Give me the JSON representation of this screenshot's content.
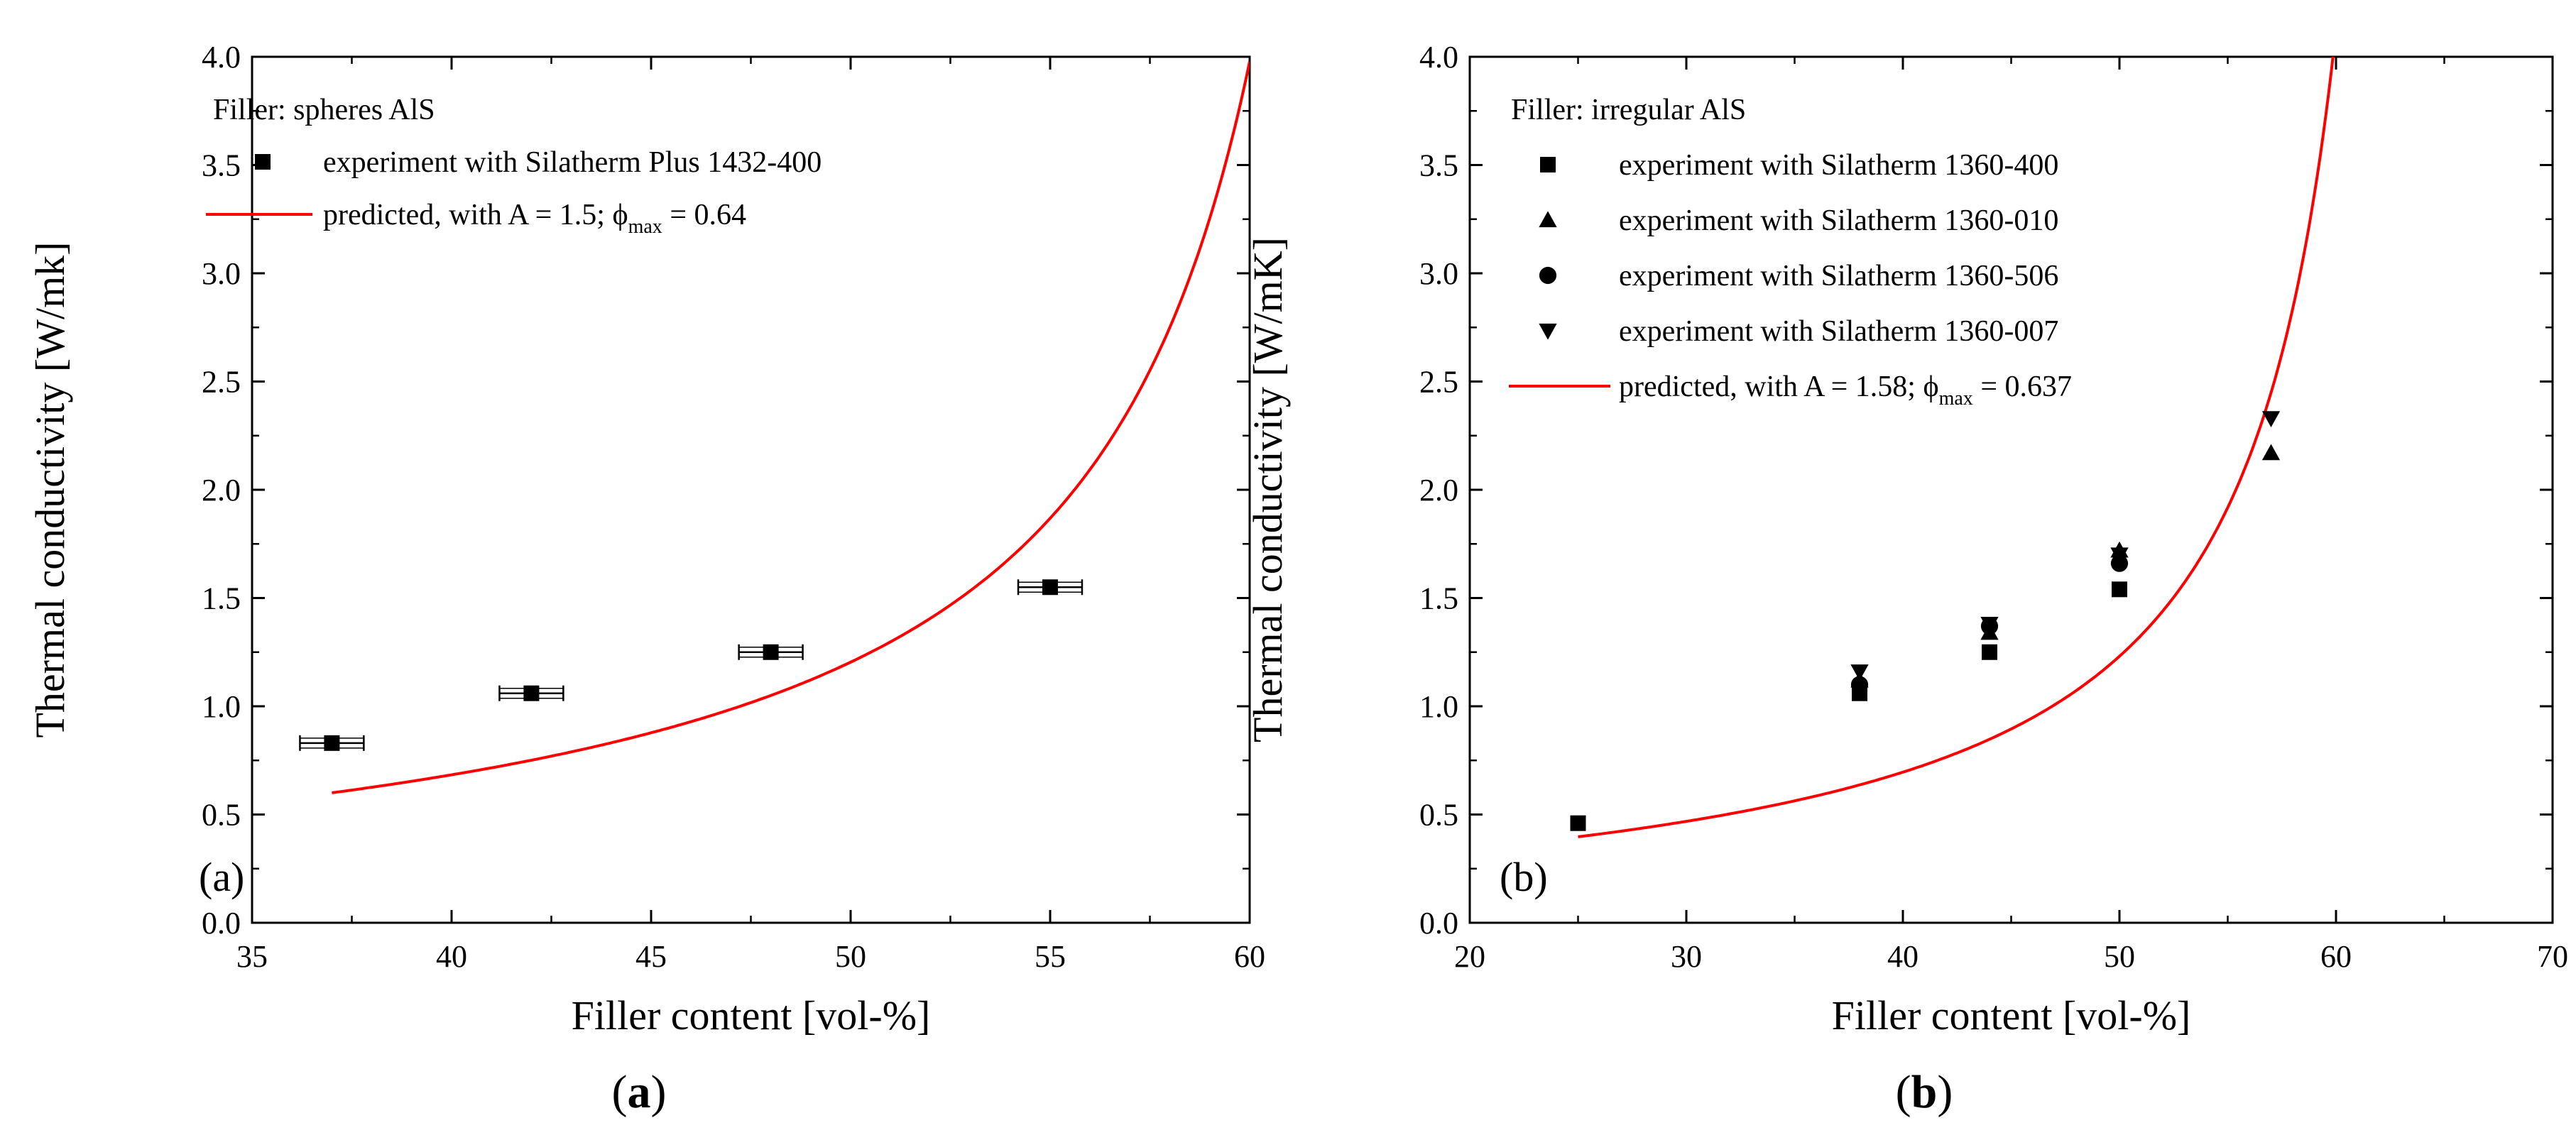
{
  "chart_data": [
    {
      "panel": "a",
      "type": "scatter",
      "xlabel": "Filler content [vol-%]",
      "ylabel": "Thermal conductivity [W/mk]",
      "xlim": [
        35,
        60
      ],
      "ylim": [
        0.0,
        4.0
      ],
      "xticks": [
        "35",
        "40",
        "45",
        "50",
        "55",
        "60"
      ],
      "yticks": [
        "0.0",
        "0.5",
        "1.0",
        "1.5",
        "2.0",
        "2.5",
        "3.0",
        "3.5",
        "4.0"
      ],
      "panel_label": "(a)",
      "caption_open": "(",
      "caption_letter": "a",
      "caption_close": ")",
      "legend_title": "Filler: spheres AlS",
      "series": [
        {
          "name": "experiment with Silatherm Plus 1432-400",
          "marker": "square",
          "x": [
            37,
            42,
            48,
            55
          ],
          "y": [
            0.83,
            1.06,
            1.25,
            1.55
          ],
          "xerr": [
            0.8,
            0.8,
            0.8,
            0.8
          ]
        }
      ],
      "model": {
        "name_prefix": "predicted, with A = 1.5; ",
        "phi": "ϕ",
        "phi_sub": "max",
        "name_suffix": " = 0.64",
        "color": "#ff0000",
        "A": 1.5,
        "phi_max": 0.64,
        "k_matrix": 0.2,
        "k_filler": 40,
        "x_start": 37,
        "x_end": 60
      }
    },
    {
      "panel": "b",
      "type": "scatter",
      "xlabel": "Filler content [vol-%]",
      "ylabel": "Thermal conductivity [W/mK]",
      "xlim": [
        20,
        70
      ],
      "ylim": [
        0.0,
        4.0
      ],
      "xticks": [
        "20",
        "30",
        "40",
        "50",
        "60",
        "70"
      ],
      "yticks": [
        "0.0",
        "0.5",
        "1.0",
        "1.5",
        "2.0",
        "2.5",
        "3.0",
        "3.5",
        "4.0"
      ],
      "panel_label": "(b)",
      "caption_open": "(",
      "caption_letter": "b",
      "caption_close": ")",
      "legend_title": "Filler: irregular AlS",
      "series": [
        {
          "name": "experiment with Silatherm 1360-400",
          "marker": "square",
          "x": [
            25,
            38,
            44,
            50
          ],
          "y": [
            0.46,
            1.06,
            1.25,
            1.54
          ]
        },
        {
          "name": "experiment with Silatherm 1360-010",
          "marker": "triangle-up",
          "x": [
            38,
            44,
            50,
            57
          ],
          "y": [
            1.12,
            1.34,
            1.72,
            2.17
          ]
        },
        {
          "name": "experiment with Silatherm 1360-506",
          "marker": "circle",
          "x": [
            38,
            44,
            50
          ],
          "y": [
            1.1,
            1.37,
            1.66
          ]
        },
        {
          "name": "experiment with Silatherm 1360-007",
          "marker": "triangle-down",
          "x": [
            38,
            44,
            50,
            57
          ],
          "y": [
            1.16,
            1.38,
            1.7,
            2.33
          ]
        }
      ],
      "model": {
        "name_prefix": "predicted, with A = 1.58; ",
        "phi": "ϕ",
        "phi_sub": "max",
        "name_suffix": " = 0.637",
        "color": "#ff0000",
        "A": 1.58,
        "phi_max": 0.637,
        "k_matrix": 0.2,
        "k_filler": 30,
        "x_start": 25,
        "x_end": 64.1
      }
    }
  ]
}
